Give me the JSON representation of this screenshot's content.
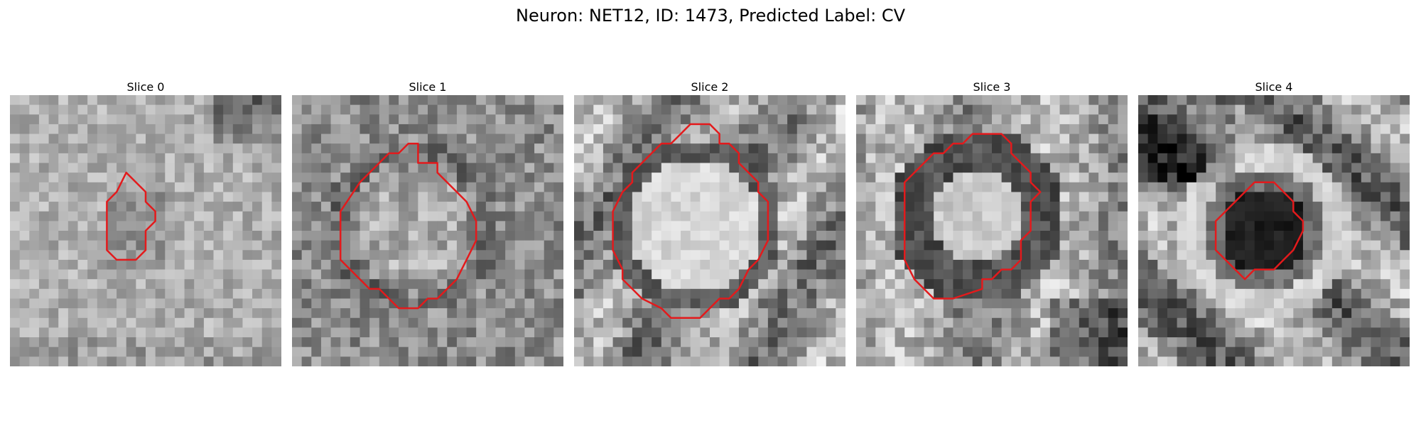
{
  "figure": {
    "title": "Neuron: NET12, ID: 1473, Predicted Label: CV"
  },
  "panels": [
    {
      "title": "Slice 0",
      "contour": [
        [
          12,
          8
        ],
        [
          14,
          10
        ],
        [
          14,
          11
        ],
        [
          15,
          12
        ],
        [
          15,
          13
        ],
        [
          14,
          14
        ],
        [
          14,
          16
        ],
        [
          13,
          17
        ],
        [
          11,
          17
        ],
        [
          10,
          16
        ],
        [
          10,
          11
        ],
        [
          11,
          10
        ]
      ]
    },
    {
      "title": "Slice 1",
      "contour": [
        [
          12,
          5
        ],
        [
          13,
          5
        ],
        [
          13,
          7
        ],
        [
          15,
          7
        ],
        [
          15,
          8
        ],
        [
          17,
          10
        ],
        [
          18,
          11
        ],
        [
          19,
          13
        ],
        [
          19,
          15
        ],
        [
          18,
          17
        ],
        [
          17,
          19
        ],
        [
          16,
          20
        ],
        [
          15,
          21
        ],
        [
          14,
          21
        ],
        [
          13,
          22
        ],
        [
          11,
          22
        ],
        [
          10,
          21
        ],
        [
          9,
          20
        ],
        [
          8,
          20
        ],
        [
          7,
          19
        ],
        [
          6,
          18
        ],
        [
          5,
          17
        ],
        [
          5,
          12
        ],
        [
          7,
          9
        ],
        [
          10,
          6
        ],
        [
          11,
          6
        ]
      ]
    },
    {
      "title": "Slice 2",
      "contour": [
        [
          11,
          4
        ],
        [
          12,
          3
        ],
        [
          14,
          3
        ],
        [
          15,
          4
        ],
        [
          15,
          5
        ],
        [
          16,
          5
        ],
        [
          17,
          6
        ],
        [
          17,
          7
        ],
        [
          18,
          8
        ],
        [
          19,
          9
        ],
        [
          19,
          10
        ],
        [
          20,
          11
        ],
        [
          20,
          15
        ],
        [
          19,
          17
        ],
        [
          18,
          18
        ],
        [
          17,
          20
        ],
        [
          16,
          21
        ],
        [
          15,
          21
        ],
        [
          13,
          23
        ],
        [
          10,
          23
        ],
        [
          9,
          22
        ],
        [
          7,
          21
        ],
        [
          6,
          20
        ],
        [
          5,
          19
        ],
        [
          5,
          18
        ],
        [
          4,
          16
        ],
        [
          4,
          12
        ],
        [
          5,
          10
        ],
        [
          6,
          9
        ],
        [
          6,
          8
        ],
        [
          7,
          7
        ],
        [
          8,
          6
        ],
        [
          9,
          5
        ],
        [
          10,
          5
        ]
      ]
    },
    {
      "title": "Slice 3",
      "contour": [
        [
          10,
          5
        ],
        [
          11,
          5
        ],
        [
          12,
          4
        ],
        [
          14,
          4
        ],
        [
          15,
          4
        ],
        [
          16,
          5
        ],
        [
          16,
          6
        ],
        [
          17,
          7
        ],
        [
          18,
          8
        ],
        [
          18,
          9
        ],
        [
          19,
          10
        ],
        [
          18,
          11
        ],
        [
          18,
          14
        ],
        [
          17,
          15
        ],
        [
          17,
          17
        ],
        [
          16,
          18
        ],
        [
          15,
          18
        ],
        [
          14,
          19
        ],
        [
          13,
          19
        ],
        [
          13,
          20
        ],
        [
          10,
          21
        ],
        [
          8,
          21
        ],
        [
          7,
          20
        ],
        [
          6,
          19
        ],
        [
          5,
          17
        ],
        [
          5,
          9
        ],
        [
          6,
          8
        ],
        [
          7,
          7
        ],
        [
          8,
          6
        ],
        [
          9,
          6
        ]
      ]
    },
    {
      "title": "Slice 4",
      "contour": [
        [
          12,
          9
        ],
        [
          14,
          9
        ],
        [
          15,
          10
        ],
        [
          16,
          11
        ],
        [
          16,
          12
        ],
        [
          17,
          13
        ],
        [
          17,
          14
        ],
        [
          16,
          16
        ],
        [
          15,
          17
        ],
        [
          14,
          18
        ],
        [
          12,
          18
        ],
        [
          11,
          19
        ],
        [
          10,
          18
        ],
        [
          9,
          17
        ],
        [
          8,
          16
        ],
        [
          8,
          13
        ],
        [
          9,
          12
        ],
        [
          10,
          11
        ],
        [
          11,
          10
        ]
      ]
    }
  ],
  "colors": {
    "contour": "#e31a1c"
  }
}
